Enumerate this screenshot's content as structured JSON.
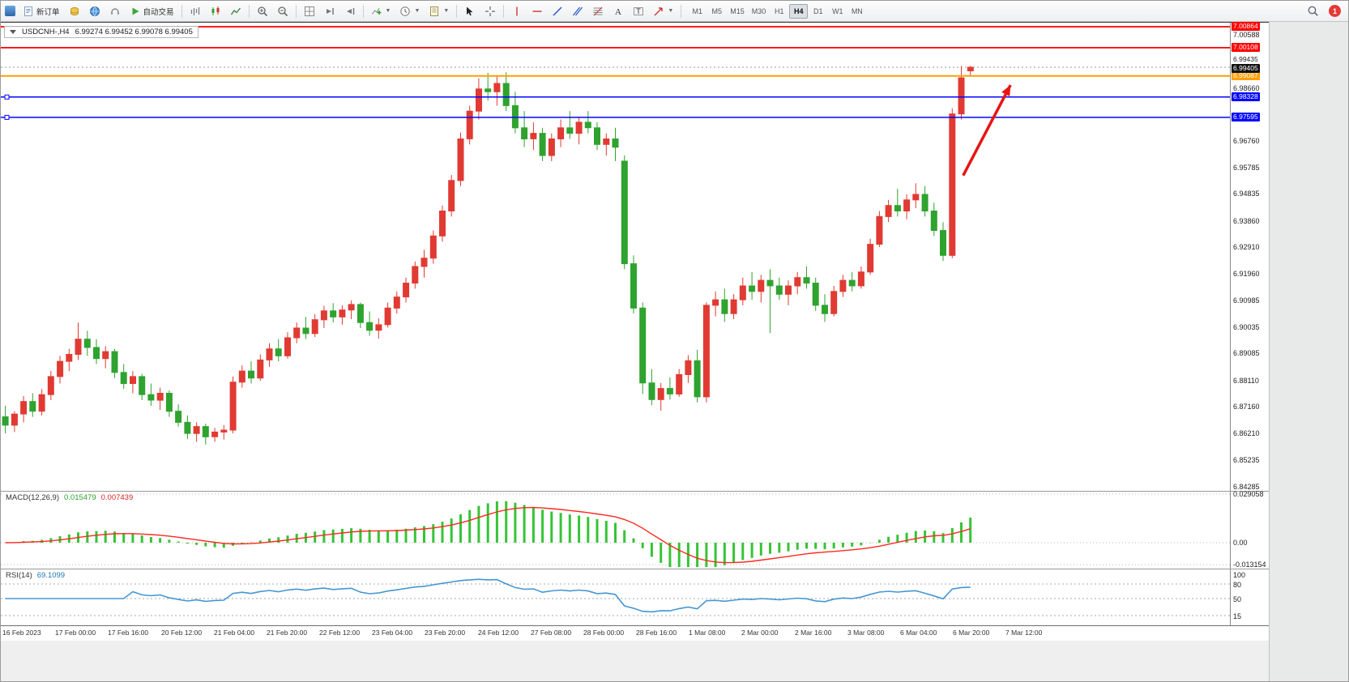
{
  "app": {
    "badge_count": "1"
  },
  "toolbar": {
    "new_order_label": "新订单",
    "autotrading_label": "自动交易",
    "timeframes": [
      "M1",
      "M5",
      "M15",
      "M30",
      "H1",
      "H4",
      "D1",
      "W1",
      "MN"
    ],
    "active_timeframe": "H4"
  },
  "chart_data": {
    "type": "candlestick",
    "title": "USDCNH-,H4",
    "ohlc_text": "6.99274 6.99452 6.99078 6.99405",
    "price_axis": {
      "top_price": 7.0101,
      "bottom_price": 6.8413,
      "ticks": [
        "7.00588",
        "6.98660",
        "6.96760",
        "6.95785",
        "6.94835",
        "6.93860",
        "6.92910",
        "6.91960",
        "6.90985",
        "6.90035",
        "6.89085",
        "6.88110",
        "6.87160",
        "6.86210",
        "6.85235",
        "6.84285"
      ]
    },
    "levels": [
      {
        "price": 7.00864,
        "label": "7.00864",
        "color": "#ff0000",
        "width": 1.7,
        "handles": false
      },
      {
        "price": 7.00108,
        "label": "7.00108",
        "color": "#ff0000",
        "width": 1.7,
        "handles": false
      },
      {
        "price": 6.99087,
        "label": "6.99087",
        "color": "#ffa000",
        "width": 2.0,
        "handles": false
      },
      {
        "price": 6.98328,
        "label": "6.98328",
        "color": "#0404ff",
        "width": 1.5,
        "handles": true
      },
      {
        "price": 6.97595,
        "label": "6.97595",
        "color": "#0404ff",
        "width": 1.5,
        "handles": true
      }
    ],
    "ask": {
      "price": 6.99435,
      "label": "6.99435"
    },
    "bid": {
      "price": 6.99405,
      "label": "6.99405"
    },
    "arrow": {
      "from_slot": 105.7,
      "from_price": 6.955,
      "to_slot": 110.9,
      "to_price": 6.9876,
      "color": "#e81414"
    },
    "colors": {
      "up": "#e03a33",
      "down": "#2fa32f",
      "macd_hist": "#36c436",
      "macd_signal": "#ff2a1f",
      "rsi": "#4596d2"
    },
    "visible_slots": 135,
    "candles": [
      [
        6.868,
        6.872,
        6.862,
        6.865
      ],
      [
        6.865,
        6.87,
        6.8625,
        6.869
      ],
      [
        6.869,
        6.8755,
        6.866,
        6.8735
      ],
      [
        6.8735,
        6.8765,
        6.868,
        6.87
      ],
      [
        6.87,
        6.878,
        6.8685,
        6.876
      ],
      [
        6.876,
        6.8845,
        6.874,
        6.8825
      ],
      [
        6.8825,
        6.89,
        6.88,
        6.888
      ],
      [
        6.888,
        6.8925,
        6.8845,
        6.8905
      ],
      [
        6.8905,
        6.902,
        6.8885,
        6.896
      ],
      [
        6.896,
        6.899,
        6.89,
        6.893
      ],
      [
        6.893,
        6.896,
        6.887,
        6.889
      ],
      [
        6.889,
        6.8935,
        6.8855,
        6.8915
      ],
      [
        6.8915,
        6.8925,
        6.882,
        6.884
      ],
      [
        6.884,
        6.887,
        6.878,
        6.88
      ],
      [
        6.88,
        6.8845,
        6.8765,
        6.8825
      ],
      [
        6.8825,
        6.8835,
        6.874,
        6.876
      ],
      [
        6.876,
        6.88,
        6.872,
        6.874
      ],
      [
        6.874,
        6.8785,
        6.8705,
        6.8765
      ],
      [
        6.8765,
        6.8775,
        6.868,
        6.87
      ],
      [
        6.87,
        6.8725,
        6.8645,
        6.866
      ],
      [
        6.866,
        6.8685,
        6.86,
        6.862
      ],
      [
        6.862,
        6.866,
        6.859,
        6.8645
      ],
      [
        6.8645,
        6.8655,
        6.858,
        6.8608
      ],
      [
        6.8608,
        6.864,
        6.859,
        6.8625
      ],
      [
        6.8625,
        6.865,
        6.8598,
        6.8632
      ],
      [
        6.8632,
        6.8825,
        6.862,
        6.8805
      ],
      [
        6.8805,
        6.8865,
        6.8785,
        6.8845
      ],
      [
        6.8845,
        6.888,
        6.88,
        6.882
      ],
      [
        6.882,
        6.8905,
        6.881,
        6.8885
      ],
      [
        6.8885,
        6.8945,
        6.886,
        6.8925
      ],
      [
        6.8925,
        6.896,
        6.888,
        6.89
      ],
      [
        6.89,
        6.8985,
        6.889,
        6.8965
      ],
      [
        6.8965,
        6.902,
        6.8945,
        6.9
      ],
      [
        6.9,
        6.904,
        6.896,
        6.898
      ],
      [
        6.898,
        6.905,
        6.8968,
        6.903
      ],
      [
        6.903,
        6.908,
        6.9,
        6.9062
      ],
      [
        6.9062,
        6.909,
        6.902,
        6.904
      ],
      [
        6.904,
        6.9082,
        6.9012,
        6.9065
      ],
      [
        6.9065,
        6.91,
        6.9032,
        6.9085
      ],
      [
        6.9085,
        6.9092,
        6.9,
        6.902
      ],
      [
        6.902,
        6.906,
        6.8972,
        6.8992
      ],
      [
        6.8992,
        6.9035,
        6.8962,
        6.9012
      ],
      [
        6.9012,
        6.9092,
        6.9002,
        6.9072
      ],
      [
        6.9072,
        6.9132,
        6.9052,
        6.9112
      ],
      [
        6.9112,
        6.9182,
        6.9092,
        6.9162
      ],
      [
        6.9162,
        6.924,
        6.9142,
        6.9222
      ],
      [
        6.9222,
        6.9282,
        6.9182,
        6.9252
      ],
      [
        6.9252,
        6.9352,
        6.9232,
        6.9332
      ],
      [
        6.9332,
        6.9442,
        6.9312,
        6.9422
      ],
      [
        6.9422,
        6.9552,
        6.9402,
        6.9532
      ],
      [
        6.9532,
        6.9705,
        6.9512,
        6.9682
      ],
      [
        6.9682,
        6.9802,
        6.9662,
        6.9782
      ],
      [
        6.9782,
        6.99,
        6.9752,
        6.9862
      ],
      [
        6.9862,
        6.992,
        6.982,
        6.9852
      ],
      [
        6.9852,
        6.9912,
        6.9802,
        6.9882
      ],
      [
        6.9882,
        6.9922,
        6.9782,
        6.9802
      ],
      [
        6.9802,
        6.9852,
        6.9702,
        6.9722
      ],
      [
        6.9722,
        6.9782,
        6.9652,
        6.9682
      ],
      [
        6.9682,
        6.9742,
        6.9642,
        6.9702
      ],
      [
        6.9702,
        6.9722,
        6.9602,
        6.9622
      ],
      [
        6.9622,
        6.9702,
        6.9602,
        6.9682
      ],
      [
        6.9682,
        6.9752,
        6.9652,
        6.9722
      ],
      [
        6.9722,
        6.9782,
        6.9682,
        6.9702
      ],
      [
        6.9702,
        6.9762,
        6.9662,
        6.9742
      ],
      [
        6.9742,
        6.9782,
        6.9702,
        6.9722
      ],
      [
        6.9722,
        6.9742,
        6.9642,
        6.9662
      ],
      [
        6.9662,
        6.9702,
        6.9622,
        6.9682
      ],
      [
        6.9682,
        6.9722,
        6.9602,
        6.9652
      ],
      [
        6.9602,
        6.9622,
        6.9212,
        6.9232
      ],
      [
        6.9232,
        6.9262,
        6.9052,
        6.9072
      ],
      [
        6.9072,
        6.9092,
        6.8762,
        6.8802
      ],
      [
        6.8802,
        6.8852,
        6.8722,
        6.8742
      ],
      [
        6.8742,
        6.8802,
        6.8702,
        6.8782
      ],
      [
        6.8782,
        6.8822,
        6.8742,
        6.8762
      ],
      [
        6.8762,
        6.8852,
        6.8752,
        6.8832
      ],
      [
        6.8832,
        6.8902,
        6.8802,
        6.8882
      ],
      [
        6.8882,
        6.8922,
        6.8732,
        6.8752
      ],
      [
        6.8752,
        6.9092,
        6.8732,
        6.9082
      ],
      [
        6.9082,
        6.9132,
        6.9042,
        6.9102
      ],
      [
        6.9102,
        6.9142,
        6.9022,
        6.9052
      ],
      [
        6.9052,
        6.9122,
        6.9032,
        6.9102
      ],
      [
        6.9102,
        6.9182,
        6.9082,
        6.9152
      ],
      [
        6.9152,
        6.9202,
        6.9102,
        6.9132
      ],
      [
        6.9132,
        6.9192,
        6.9092,
        6.9172
      ],
      [
        6.9172,
        6.9212,
        6.8982,
        6.9152
      ],
      [
        6.9152,
        6.9182,
        6.9102,
        6.9122
      ],
      [
        6.9122,
        6.9172,
        6.9082,
        6.9152
      ],
      [
        6.9152,
        6.9202,
        6.9122,
        6.9182
      ],
      [
        6.9182,
        6.9222,
        6.9142,
        6.9162
      ],
      [
        6.9162,
        6.9182,
        6.9062,
        6.9082
      ],
      [
        6.9082,
        6.9122,
        6.9022,
        6.9052
      ],
      [
        6.9052,
        6.9152,
        6.9042,
        6.9132
      ],
      [
        6.9132,
        6.9192,
        6.9112,
        6.9172
      ],
      [
        6.9172,
        6.9202,
        6.9132,
        6.9152
      ],
      [
        6.9152,
        6.9222,
        6.9142,
        6.9202
      ],
      [
        6.9202,
        6.9322,
        6.9192,
        6.9302
      ],
      [
        6.9302,
        6.9422,
        6.9292,
        6.9402
      ],
      [
        6.9402,
        6.9462,
        6.9382,
        6.9442
      ],
      [
        6.9442,
        6.9502,
        6.9402,
        6.9422
      ],
      [
        6.9422,
        6.9482,
        6.9392,
        6.9462
      ],
      [
        6.9462,
        6.9522,
        6.9432,
        6.9482
      ],
      [
        6.9482,
        6.9512,
        6.9402,
        6.9422
      ],
      [
        6.9422,
        6.9452,
        6.9332,
        6.9352
      ],
      [
        6.9352,
        6.9382,
        6.9242,
        6.9262
      ],
      [
        6.9262,
        6.9792,
        6.9252,
        6.9772
      ],
      [
        6.9772,
        6.9944,
        6.9752,
        6.9902
      ],
      [
        6.99274,
        6.99452,
        6.99078,
        6.99405
      ]
    ],
    "macd": {
      "label": "MACD(12,26,9)",
      "value_main": "0.015479",
      "value_signal": "0.007439",
      "vmax": 0.0305,
      "vmin": -0.0155,
      "axis": [
        {
          "label": "0.029058",
          "value": 0.029058
        },
        {
          "label": "0.00",
          "value": 0
        },
        {
          "label": "-0.013154",
          "value": -0.013154
        }
      ]
    },
    "rsi": {
      "label": "RSI(14)",
      "value": "69.1099",
      "levels": [
        80,
        50,
        15
      ],
      "axis_labels": [
        {
          "label": "100",
          "value": 100
        },
        {
          "label": "80",
          "value": 80
        },
        {
          "label": "50",
          "value": 50
        },
        {
          "label": "15",
          "value": 15
        }
      ]
    },
    "time_labels": [
      "16 Feb 2023",
      "17 Feb 00:00",
      "17 Feb 16:00",
      "20 Feb 12:00",
      "21 Feb 04:00",
      "21 Feb 20:00",
      "22 Feb 12:00",
      "23 Feb 04:00",
      "23 Feb 20:00",
      "24 Feb 12:00",
      "27 Feb 08:00",
      "28 Feb 00:00",
      "28 Feb 16:00",
      "1 Mar 08:00",
      "2 Mar 00:00",
      "2 Mar 16:00",
      "3 Mar 08:00",
      "6 Mar 04:00",
      "6 Mar 20:00",
      "7 Mar 12:00"
    ]
  }
}
